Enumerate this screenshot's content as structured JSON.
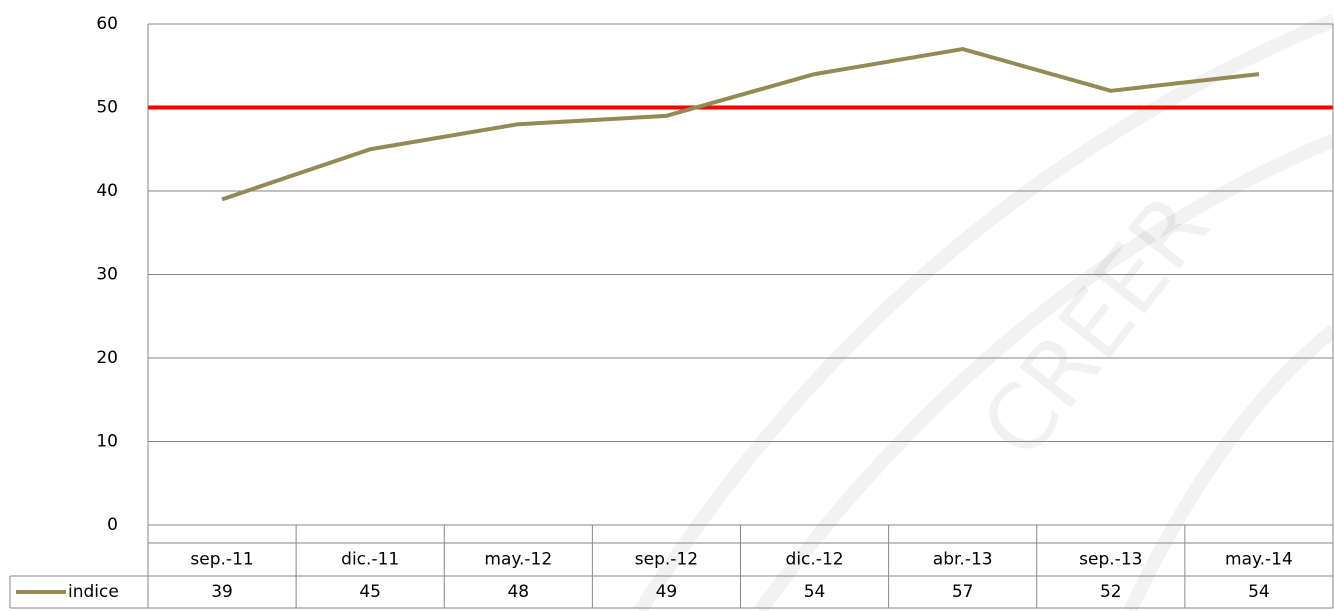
{
  "chart_data": {
    "type": "line",
    "watermark": "CREER",
    "categories": [
      "sep.-11",
      "dic.-11",
      "may.-12",
      "sep.-12",
      "dic.-12",
      "abr.-13",
      "sep.-13",
      "may.-14"
    ],
    "series": [
      {
        "name": "indice",
        "color": "#948a54",
        "values": [
          39,
          45,
          48,
          49,
          54,
          57,
          52,
          54
        ]
      }
    ],
    "ylim": [
      0,
      60
    ],
    "yticks": [
      0,
      10,
      20,
      30,
      40,
      50,
      60
    ],
    "grid": true,
    "reference_line": {
      "value": 50,
      "color": "#ff0000"
    },
    "data_table": true
  }
}
